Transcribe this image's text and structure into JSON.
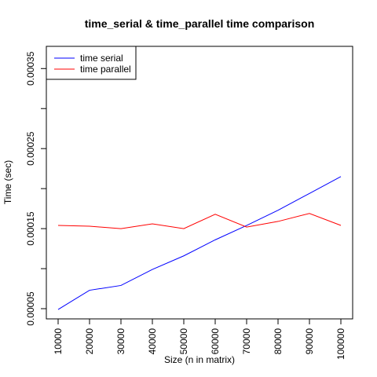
{
  "chart_data": {
    "type": "line",
    "title": "time_serial & time_parallel time comparison",
    "xlabel": "Size (n in matrix)",
    "ylabel": "Time (sec)",
    "x": [
      10000,
      20000,
      30000,
      40000,
      50000,
      60000,
      70000,
      80000,
      90000,
      100000
    ],
    "x_tick_labels": [
      "10000",
      "20000",
      "30000",
      "40000",
      "50000",
      "60000",
      "70000",
      "80000",
      "90000",
      "100000"
    ],
    "y_ticks": [
      5e-05,
      0.0001,
      0.00015,
      0.0002,
      0.00025,
      0.0003,
      0.00035
    ],
    "y_tick_labels": [
      "0.00005",
      "0.00015",
      "0.00025",
      "0.00035"
    ],
    "y_labeled_ticks": [
      5e-05,
      0.00015,
      0.00025,
      0.00035
    ],
    "xlim": [
      10000,
      100000
    ],
    "ylim": [
      5e-05,
      0.000365
    ],
    "grid": false,
    "legend_position": "top-left",
    "series": [
      {
        "name": "time serial",
        "color": "#0000ff",
        "values": [
          4.9e-05,
          7.3e-05,
          7.9e-05,
          9.9e-05,
          0.000116,
          0.000136,
          0.000154,
          0.000173,
          0.000194,
          0.000215
        ]
      },
      {
        "name": "time parallel",
        "color": "#ff0000",
        "values": [
          0.000154,
          0.000153,
          0.00015,
          0.000156,
          0.00015,
          0.000168,
          0.000152,
          0.000159,
          0.000169,
          0.000154
        ]
      }
    ]
  }
}
